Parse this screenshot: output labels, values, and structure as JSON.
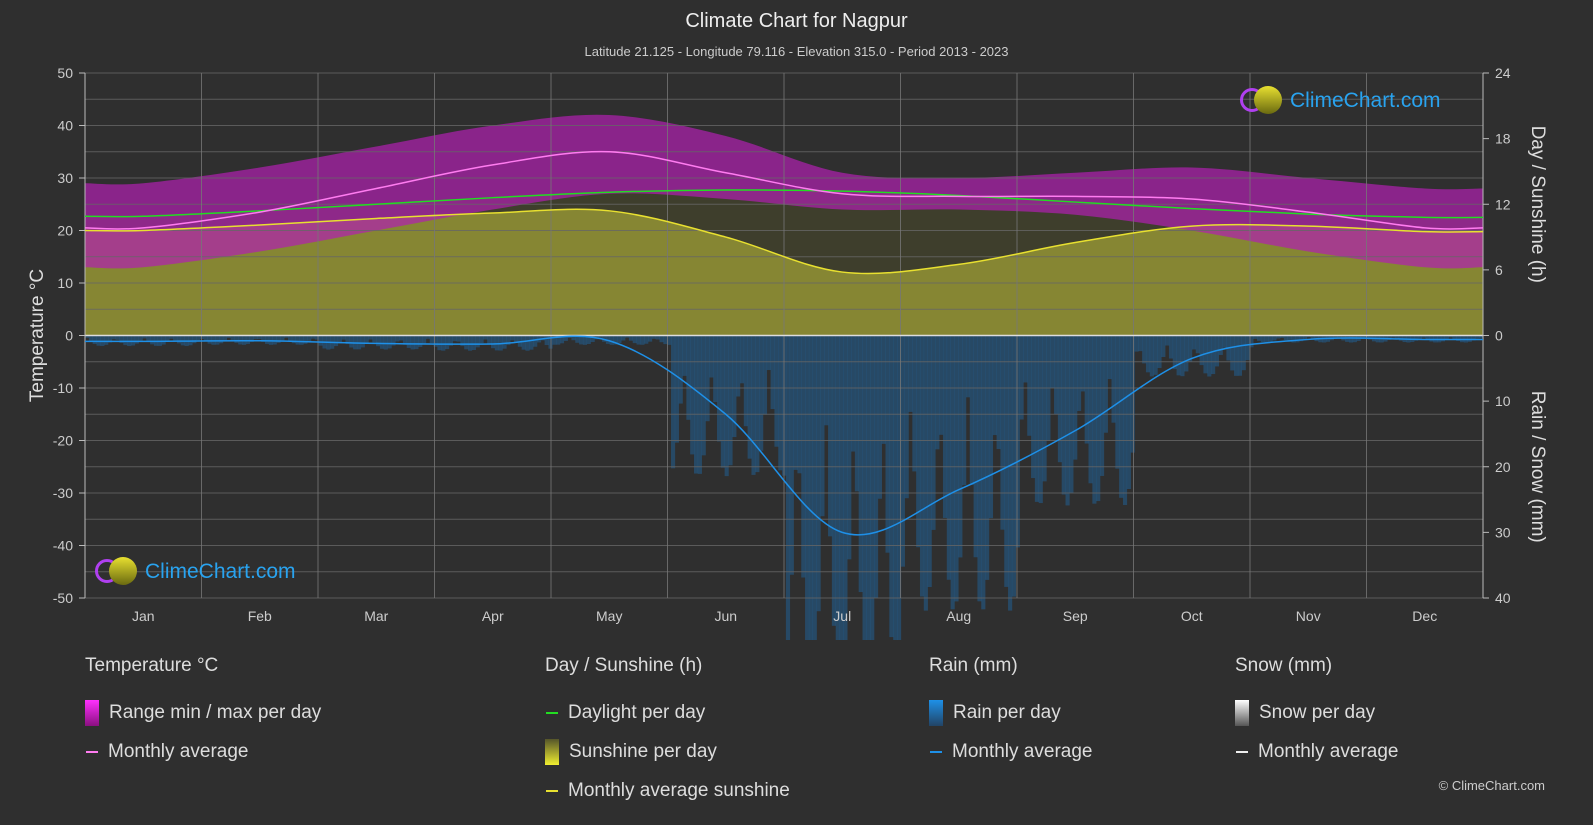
{
  "title": "Climate Chart for Nagpur",
  "subtitle": "Latitude 21.125 - Longitude 79.116 - Elevation 315.0 - Period 2013 - 2023",
  "logo_text": "ClimeChart.com",
  "copyright": "© ClimeChart.com",
  "chart_data": {
    "type": "line",
    "categories": [
      "Jan",
      "Feb",
      "Mar",
      "Apr",
      "May",
      "Jun",
      "Jul",
      "Aug",
      "Sep",
      "Oct",
      "Nov",
      "Dec"
    ],
    "left_axis": {
      "label": "Temperature °C",
      "ylim": [
        -50,
        50
      ],
      "ticks": [
        50,
        40,
        30,
        20,
        10,
        0,
        -10,
        -20,
        -30,
        -40,
        -50
      ]
    },
    "right_axis_top": {
      "label": "Day / Sunshine (h)",
      "ylim": [
        0,
        24
      ],
      "ticks": [
        24,
        18,
        12,
        6,
        0
      ]
    },
    "right_axis_bottom": {
      "label": "Rain / Snow (mm)",
      "ylim": [
        0,
        40
      ],
      "ticks": [
        0,
        10,
        20,
        30,
        40
      ]
    },
    "grid": true,
    "series": [
      {
        "name": "Monthly average",
        "group": "temperature",
        "axis": "left",
        "color": "#ff7cf0",
        "values": [
          20.5,
          23.5,
          28,
          32.5,
          35,
          31,
          27,
          26.5,
          26.5,
          26,
          23.5,
          20.5
        ]
      },
      {
        "name": "Range min / max per day",
        "group": "temperature",
        "axis": "left",
        "color": "#c21fc0",
        "max": [
          29,
          32,
          36,
          40,
          42,
          38,
          31,
          30,
          31,
          32,
          30,
          28
        ],
        "min": [
          13,
          16,
          20,
          24,
          27,
          26,
          24,
          24,
          23,
          20,
          16,
          13
        ]
      },
      {
        "name": "Daylight per day",
        "axis": "right_top",
        "color": "#22dd22",
        "values": [
          10.9,
          11.4,
          12.0,
          12.6,
          13.1,
          13.3,
          13.2,
          12.8,
          12.2,
          11.6,
          11.1,
          10.8
        ]
      },
      {
        "name": "Monthly average sunshine",
        "axis": "right_top",
        "color": "#e8e030",
        "values": [
          9.6,
          10.1,
          10.7,
          11.2,
          11.4,
          9.0,
          5.8,
          6.5,
          8.5,
          10.0,
          10.0,
          9.5
        ]
      },
      {
        "name": "Monthly average",
        "group": "rain",
        "axis": "right_bottom",
        "color": "#1e90e8",
        "values": [
          0.9,
          0.8,
          1.2,
          1.3,
          0.8,
          12.0,
          30.0,
          23.5,
          14.5,
          3.5,
          0.6,
          0.6
        ]
      }
    ]
  },
  "legend": {
    "temperature": {
      "header": "Temperature °C",
      "items": [
        "Range min / max per day",
        "Monthly average"
      ]
    },
    "sun": {
      "header": "Day / Sunshine (h)",
      "items": [
        "Daylight per day",
        "Sunshine per day",
        "Monthly average sunshine"
      ]
    },
    "rain": {
      "header": "Rain (mm)",
      "items": [
        "Rain per day",
        "Monthly average"
      ]
    },
    "snow": {
      "header": "Snow (mm)",
      "items": [
        "Snow per day",
        "Monthly average"
      ]
    }
  }
}
